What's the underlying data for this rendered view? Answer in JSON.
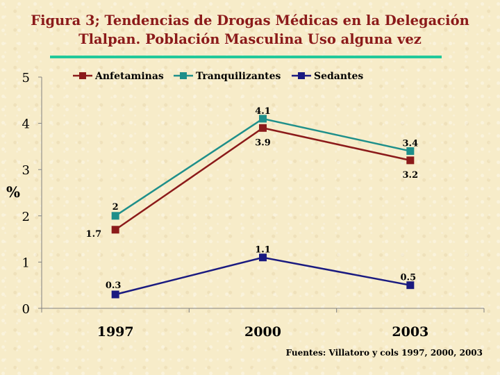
{
  "title_line1": "Figura 3; Tendencias de Drogas Médicas en  la Delegación",
  "title_line2": "Tlalpan. Población Masculina Uso alguna vez",
  "source": "Fuentes: Villatoro y cols 1997, 2000, 2003",
  "chart_data": {
    "type": "line",
    "categories": [
      "1997",
      "2000",
      "2003"
    ],
    "ylabel": "%",
    "ylim": [
      0,
      5
    ],
    "yticks": [
      "0",
      "1",
      "2",
      "3",
      "4",
      "5"
    ],
    "grid": false,
    "legend_position": "top",
    "series": [
      {
        "name": "Anfetaminas",
        "values": [
          1.7,
          3.9,
          3.2
        ],
        "labels": [
          "1.7",
          "3.9",
          "3.2"
        ],
        "color": "#8b1a1a"
      },
      {
        "name": "Tranquilizantes",
        "values": [
          2,
          4.1,
          3.4
        ],
        "labels": [
          "2",
          "4.1",
          "3.4"
        ],
        "color": "#1e8f8a"
      },
      {
        "name": "Sedantes",
        "values": [
          0.3,
          1.1,
          0.5
        ],
        "labels": [
          "0.3",
          "1.1",
          "0.5"
        ],
        "color": "#1a1a80"
      }
    ]
  }
}
